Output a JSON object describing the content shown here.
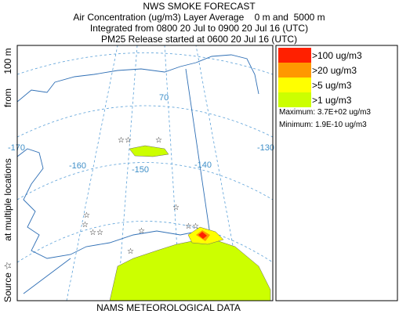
{
  "header": {
    "title": "NWS SMOKE FORECAST",
    "line1": "Air Concentration (ug/m3) Layer Average    0 m and  5000 m",
    "line2": "Integrated from 0800 20 Jul to 0900 20 Jul 16 (UTC)",
    "line3": "PM25 Release started at 0600 20 Jul 16 (UTC)"
  },
  "side_label": [
    "Source ☆",
    "at multiple locations",
    "from",
    "100 m"
  ],
  "map_labels": [
    "-170",
    "-160",
    "-150",
    "-140",
    "-130",
    "70"
  ],
  "legend": {
    "items": [
      {
        "label": ">100 ug/m3",
        "color": "#ff2000"
      },
      {
        "label": ">20 ug/m3",
        "color": "#ff9900"
      },
      {
        "label": ">5 ug/m3",
        "color": "#ffff00"
      },
      {
        "label": ">1 ug/m3",
        "color": "#ccff00"
      }
    ],
    "maximum": "Maximum: 3.7E+02 ug/m3",
    "minimum": "Minimum: 1.9E-10 ug/m3"
  },
  "footer": "NAMS METEOROLOGICAL DATA"
}
